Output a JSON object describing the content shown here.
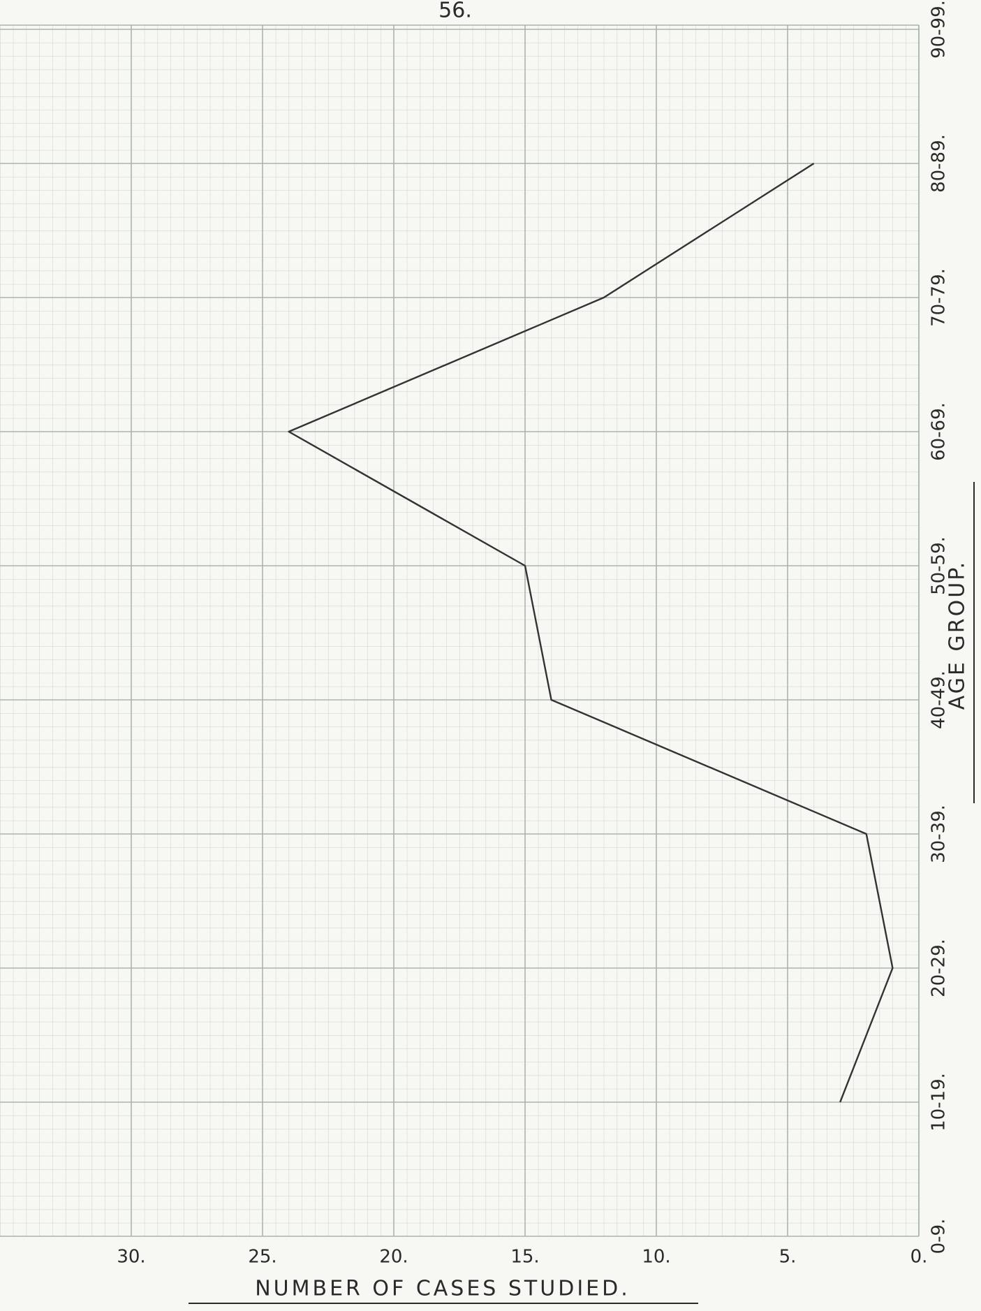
{
  "page_number": "56.",
  "chart_data": {
    "type": "line",
    "x_label": "NUMBER OF CASES STUDIED.",
    "y_label": "AGE GROUP.",
    "categories": [
      "0-9.",
      "10-19.",
      "20-29.",
      "30-39.",
      "40-49.",
      "50-59.",
      "60-69.",
      "70-79.",
      "80-89.",
      "90-99."
    ],
    "values": [
      null,
      3,
      1,
      2,
      14,
      15,
      24,
      12,
      4,
      null
    ],
    "color": "#333333",
    "xlim": [
      35,
      0
    ],
    "xticks": [
      {
        "value": 30,
        "label": "30."
      },
      {
        "value": 25,
        "label": "25."
      },
      {
        "value": 20,
        "label": "20."
      },
      {
        "value": 15,
        "label": "15."
      },
      {
        "value": 10,
        "label": "10."
      },
      {
        "value": 5,
        "label": "5."
      },
      {
        "value": 0,
        "label": "0."
      }
    ],
    "grid": true
  }
}
